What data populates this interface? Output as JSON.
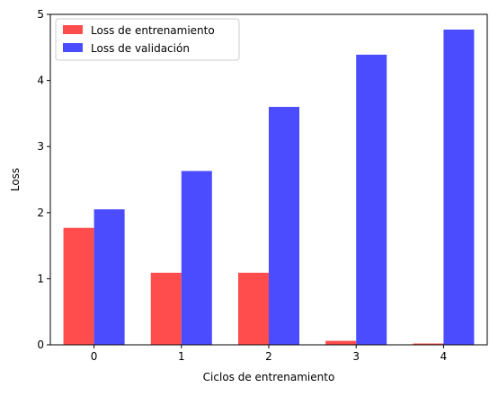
{
  "chart_data": {
    "type": "bar",
    "title": "",
    "xlabel": "Ciclos de entrenamiento",
    "ylabel": "Loss",
    "categories": [
      "0",
      "1",
      "2",
      "3",
      "4"
    ],
    "series": [
      {
        "name": "Loss de entrenamiento",
        "color": "#ff4c4c",
        "values": [
          1.77,
          1.09,
          1.09,
          0.06,
          0.02
        ]
      },
      {
        "name": "Loss de validación",
        "color": "#4c4cff",
        "values": [
          2.05,
          2.63,
          3.6,
          4.39,
          4.77
        ]
      }
    ],
    "ylim": [
      0,
      5
    ],
    "yticks": [
      "0",
      "1",
      "2",
      "3",
      "4",
      "5"
    ],
    "grid": false,
    "legend_position": "top-left"
  }
}
